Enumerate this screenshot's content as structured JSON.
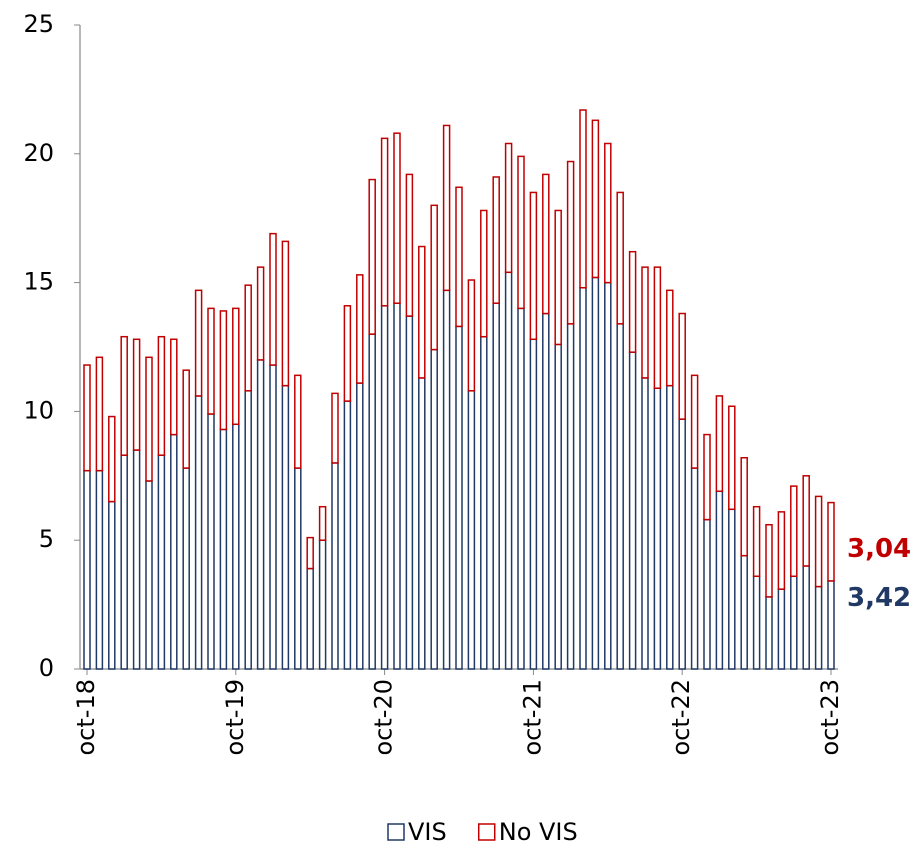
{
  "chart_data": {
    "type": "stacked_bar",
    "categories": [
      "oct-18",
      null,
      null,
      null,
      null,
      null,
      null,
      null,
      null,
      null,
      null,
      null,
      "oct-19",
      null,
      null,
      null,
      null,
      null,
      null,
      null,
      null,
      null,
      null,
      null,
      "oct-20",
      null,
      null,
      null,
      null,
      null,
      null,
      null,
      null,
      null,
      null,
      null,
      "oct-21",
      null,
      null,
      null,
      null,
      null,
      null,
      null,
      null,
      null,
      null,
      null,
      "oct-22",
      null,
      null,
      null,
      null,
      null,
      null,
      null,
      null,
      null,
      null,
      null,
      "oct-23"
    ],
    "series": [
      {
        "name": "VIS",
        "color": "#203864",
        "values": [
          7.7,
          7.7,
          6.5,
          8.3,
          8.5,
          7.3,
          8.3,
          9.1,
          7.8,
          10.6,
          9.9,
          9.3,
          9.5,
          10.8,
          12.0,
          11.8,
          11.0,
          7.8,
          3.9,
          5.0,
          8.0,
          10.4,
          11.1,
          13.0,
          14.1,
          14.2,
          13.7,
          11.3,
          12.4,
          14.7,
          13.3,
          10.8,
          12.9,
          14.2,
          15.4,
          14.0,
          12.8,
          13.8,
          12.6,
          13.4,
          14.8,
          15.2,
          15.0,
          13.4,
          12.3,
          11.3,
          10.9,
          11.0,
          9.7,
          7.8,
          5.8,
          6.9,
          6.2,
          4.4,
          3.6,
          2.8,
          3.1,
          3.6,
          4.0,
          3.2,
          3.42
        ],
        "value_labels": [
          null,
          null,
          null,
          null,
          null,
          null,
          null,
          null,
          null,
          null,
          null,
          null,
          null,
          null,
          null,
          null,
          null,
          null,
          null,
          null,
          null,
          null,
          null,
          null,
          null,
          null,
          null,
          null,
          null,
          null,
          null,
          null,
          null,
          null,
          null,
          null,
          null,
          null,
          null,
          null,
          null,
          null,
          null,
          null,
          null,
          null,
          null,
          null,
          null,
          null,
          null,
          null,
          null,
          null,
          null,
          null,
          null,
          null,
          null,
          null,
          "3,42"
        ]
      },
      {
        "name": "No VIS",
        "color": "#c00000",
        "values": [
          4.1,
          4.4,
          3.3,
          4.6,
          4.3,
          4.8,
          4.6,
          3.7,
          3.8,
          4.1,
          4.1,
          4.6,
          4.5,
          4.1,
          3.6,
          5.1,
          5.6,
          3.6,
          1.2,
          1.3,
          2.7,
          3.7,
          4.2,
          6.0,
          6.5,
          6.6,
          5.5,
          5.1,
          5.6,
          6.4,
          5.4,
          4.3,
          4.9,
          4.9,
          5.0,
          5.9,
          5.7,
          5.4,
          5.2,
          6.3,
          6.9,
          6.1,
          5.4,
          5.1,
          3.9,
          4.3,
          4.7,
          3.7,
          4.1,
          3.6,
          3.3,
          3.7,
          4.0,
          3.8,
          2.7,
          2.8,
          3.0,
          3.5,
          3.5,
          3.5,
          3.04
        ],
        "value_labels": [
          null,
          null,
          null,
          null,
          null,
          null,
          null,
          null,
          null,
          null,
          null,
          null,
          null,
          null,
          null,
          null,
          null,
          null,
          null,
          null,
          null,
          null,
          null,
          null,
          null,
          null,
          null,
          null,
          null,
          null,
          null,
          null,
          null,
          null,
          null,
          null,
          null,
          null,
          null,
          null,
          null,
          null,
          null,
          null,
          null,
          null,
          null,
          null,
          null,
          null,
          null,
          null,
          null,
          null,
          null,
          null,
          null,
          null,
          null,
          null,
          "3,04"
        ]
      }
    ],
    "ylim": [
      0,
      25
    ],
    "yticks": [
      0,
      5,
      10,
      15,
      20,
      25
    ],
    "grid": false,
    "legend": "bottom"
  }
}
